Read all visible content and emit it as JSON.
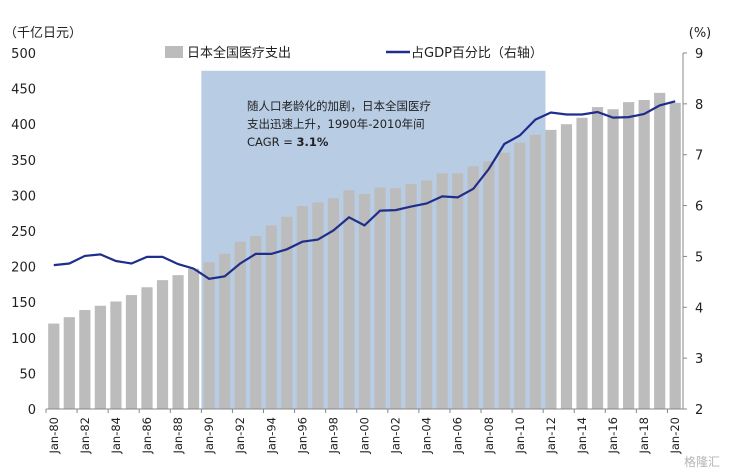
{
  "chart_data": {
    "type": "bar",
    "y_left_label": "（千亿日元）",
    "y_right_label": "(%)",
    "y_left_range": [
      0,
      500
    ],
    "y_left_ticks": [
      0,
      50,
      100,
      150,
      200,
      250,
      300,
      350,
      400,
      450,
      500
    ],
    "y_right_range": [
      2,
      9
    ],
    "y_right_ticks": [
      2,
      3,
      4,
      5,
      6,
      7,
      8,
      9
    ],
    "x_tick_labels": [
      "Jan-80",
      "Jan-82",
      "Jan-84",
      "Jan-86",
      "Jan-88",
      "Jan-90",
      "Jan-92",
      "Jan-94",
      "Jan-96",
      "Jan-98",
      "Jan-00",
      "Jan-02",
      "Jan-04",
      "Jan-06",
      "Jan-08",
      "Jan-10",
      "Jan-12",
      "Jan-14",
      "Jan-16",
      "Jan-18",
      "Jan-20"
    ],
    "categories": [
      "1980",
      "1981",
      "1982",
      "1983",
      "1984",
      "1985",
      "1986",
      "1987",
      "1988",
      "1989",
      "1990",
      "1991",
      "1992",
      "1993",
      "1994",
      "1995",
      "1996",
      "1997",
      "1998",
      "1999",
      "2000",
      "2001",
      "2002",
      "2003",
      "2004",
      "2005",
      "2006",
      "2007",
      "2008",
      "2009",
      "2010",
      "2011",
      "2012",
      "2013",
      "2014",
      "2015",
      "2016",
      "2017",
      "2018",
      "2019",
      "2020"
    ],
    "series": [
      {
        "name": "日本全国医疗支出",
        "type": "bar",
        "axis": "left",
        "color": "#bcbcbc",
        "values": [
          120,
          129,
          139,
          145,
          151,
          160,
          171,
          181,
          188,
          197,
          206,
          218,
          235,
          243,
          258,
          270,
          285,
          290,
          296,
          307,
          302,
          311,
          310,
          316,
          321,
          331,
          331,
          341,
          348,
          360,
          374,
          385,
          392,
          400,
          409,
          424,
          421,
          431,
          434,
          444,
          430
        ]
      },
      {
        "name": "占GDP百分比（右轴）",
        "type": "line",
        "axis": "right",
        "color": "#1f2e8a",
        "values": [
          4.83,
          4.86,
          5.01,
          5.04,
          4.91,
          4.86,
          4.99,
          4.99,
          4.85,
          4.76,
          4.56,
          4.61,
          4.86,
          5.05,
          5.05,
          5.14,
          5.29,
          5.33,
          5.51,
          5.77,
          5.61,
          5.9,
          5.91,
          5.98,
          6.04,
          6.18,
          6.16,
          6.33,
          6.72,
          7.21,
          7.38,
          7.69,
          7.83,
          7.79,
          7.79,
          7.84,
          7.73,
          7.74,
          7.8,
          7.97,
          8.05
        ]
      }
    ],
    "shaded_region": {
      "from": "1990",
      "to": "2012",
      "color": "#b8cce4"
    },
    "annotation": {
      "lines": [
        "随人口老龄化的加剧，日本全国医疗",
        "支出迅速上升，1990年-2010年间"
      ],
      "cagr_prefix": "CAGR = ",
      "cagr_value": "3.1%"
    },
    "legend": {
      "bar_label": "日本全国医疗支出",
      "line_label": "占GDP百分比（右轴）",
      "placement": "top"
    },
    "grid": false
  },
  "watermark": "格隆汇"
}
